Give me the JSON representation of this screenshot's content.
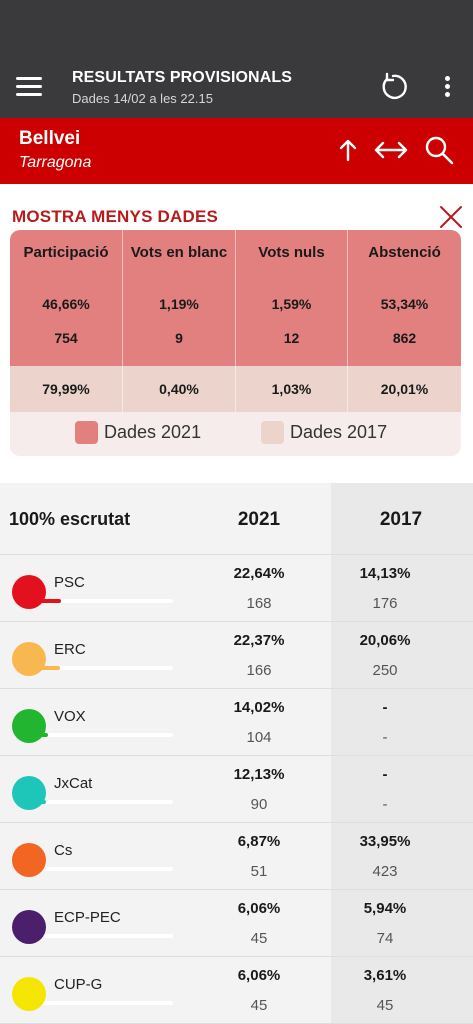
{
  "appbar": {
    "title": "RESULTATS PROVISIONALS",
    "subtitle": "Dades 14/02 a les 22.15"
  },
  "location": {
    "municipality": "Bellvei",
    "province": "Tarragona"
  },
  "summary": {
    "toggle_label": "MOSTRA MENYS DADES",
    "headers": [
      "Participació",
      "Vots en blanc",
      "Vots nuls",
      "Abstenció"
    ],
    "pct_2021": [
      "46,66%",
      "1,19%",
      "1,59%",
      "53,34%"
    ],
    "votes_2021": [
      "754",
      "9",
      "12",
      "862"
    ],
    "pct_2017": [
      "79,99%",
      "0,40%",
      "1,03%",
      "20,01%"
    ],
    "legend": [
      {
        "label": "Dades 2021",
        "color": "#e27f7f"
      },
      {
        "label": "Dades 2017",
        "color": "#ecd4cc"
      }
    ]
  },
  "results": {
    "counted_label": "100% escrutat",
    "year_2021": "2021",
    "year_2017": "2017",
    "parties": [
      {
        "name": "PSC",
        "color": "#e3111d",
        "share": 0.2264,
        "pct_2021": "22,64%",
        "seats_2021": "168",
        "pct_2017": "14,13%",
        "seats_2017": "176"
      },
      {
        "name": "ERC",
        "color": "#f9b74f",
        "share": 0.2237,
        "pct_2021": "22,37%",
        "seats_2021": "166",
        "pct_2017": "20,06%",
        "seats_2017": "250"
      },
      {
        "name": "VOX",
        "color": "#22b52f",
        "share": 0.1402,
        "pct_2021": "14,02%",
        "seats_2021": "104",
        "pct_2017": "-",
        "seats_2017": "-"
      },
      {
        "name": "JxCat",
        "color": "#1ec6b9",
        "share": 0.1213,
        "pct_2021": "12,13%",
        "seats_2021": "90",
        "pct_2017": "-",
        "seats_2017": "-"
      },
      {
        "name": "Cs",
        "color": "#f26522",
        "share": 0.0687,
        "pct_2021": "6,87%",
        "seats_2021": "51",
        "pct_2017": "33,95%",
        "seats_2017": "423"
      },
      {
        "name": "ECP-PEC",
        "color": "#4b1f6b",
        "share": 0.0606,
        "pct_2021": "6,06%",
        "seats_2021": "45",
        "pct_2017": "5,94%",
        "seats_2017": "74"
      },
      {
        "name": "CUP-G",
        "color": "#f4e600",
        "share": 0.0606,
        "pct_2021": "6,06%",
        "seats_2021": "45",
        "pct_2017": "3,61%",
        "seats_2017": "45"
      }
    ]
  },
  "icons": [
    "hamburger-menu-icon",
    "reload-icon",
    "more-vertical-icon",
    "arrow-up-icon",
    "expand-horizontal-icon",
    "search-icon",
    "close-icon"
  ]
}
